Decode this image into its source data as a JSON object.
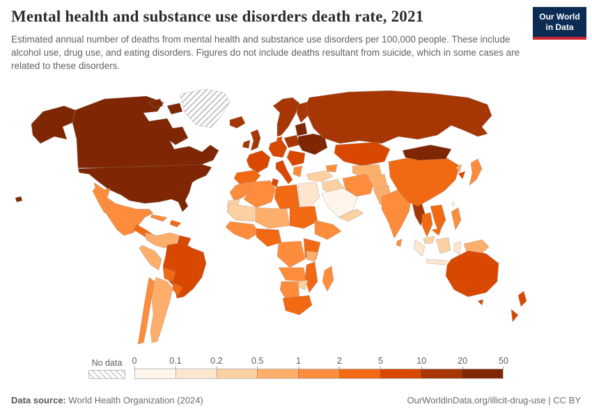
{
  "header": {
    "title": "Mental health and substance use disorders death rate, 2021",
    "subtitle": "Estimated annual number of deaths from mental health and substance use disorders per 100,000 people. These include alcohol use, drug use, and eating disorders. Figures do not include deaths resultant from suicide, which in some cases are related to these disorders.",
    "logo": {
      "line1": "Our World",
      "line2": "in Data",
      "bg_color": "#0d2c54",
      "accent_color": "#cd2531"
    }
  },
  "legend": {
    "no_data_label": "No data",
    "tick_labels": [
      "0",
      "0.1",
      "0.2",
      "0.5",
      "1",
      "2",
      "5",
      "10",
      "20",
      "50"
    ],
    "bin_colors": [
      "#fff5eb",
      "#fee6ce",
      "#fdd0a2",
      "#fdae6b",
      "#fd8d3c",
      "#f16913",
      "#d94801",
      "#a63603",
      "#7f2704"
    ]
  },
  "footer": {
    "datasource_label": "Data source:",
    "datasource_value": " World Health Organization (2024)",
    "link_text": "OurWorldinData.org/illicit-drug-use | CC BY"
  },
  "chart_data": {
    "type": "heatmap",
    "subtype": "choropleth-world-map",
    "title": "Mental health and substance use disorders death rate, 2021",
    "unit": "deaths per 100,000 people",
    "year": 2021,
    "legend_position": "bottom",
    "scale_bins": [
      {
        "range": "0–0.1",
        "color": "#fff5eb"
      },
      {
        "range": "0.1–0.2",
        "color": "#fee6ce"
      },
      {
        "range": "0.2–0.5",
        "color": "#fdd0a2"
      },
      {
        "range": "0.5–1",
        "color": "#fdae6b"
      },
      {
        "range": "1–2",
        "color": "#fd8d3c"
      },
      {
        "range": "2–5",
        "color": "#f16913"
      },
      {
        "range": "5–10",
        "color": "#d94801"
      },
      {
        "range": "10–20",
        "color": "#a63603"
      },
      {
        "range": "20–50",
        "color": "#7f2704"
      }
    ],
    "regions_by_bin": {
      "20-50": [
        "United States",
        "Canada",
        "Ukraine",
        "Belarus",
        "Baltic states",
        "Mongolia"
      ],
      "10-20": [
        "Russia",
        "Iceland",
        "Norway",
        "Sweden",
        "Finland",
        "United Kingdom",
        "Ireland",
        "Poland",
        "Myanmar"
      ],
      "5-10": [
        "France",
        "Germany",
        "Italy",
        "Romania",
        "Denmark",
        "Kazakhstan",
        "Brazil",
        "Guyana",
        "Uruguay",
        "Australia",
        "New Zealand",
        "South Korea",
        "Tunisia"
      ],
      "2-5": [
        "Spain",
        "Portugal",
        "China",
        "Libya",
        "Thailand",
        "Vietnam",
        "Cambodia",
        "Nigeria",
        "Sudan",
        "Mozambique",
        "South Africa",
        "Bolivia",
        "Central America"
      ],
      "1-2": [
        "Mexico",
        "Chile",
        "India",
        "Japan",
        "Philippines",
        "Sri Lanka",
        "Algeria",
        "Morocco",
        "Iran",
        "Madagascar",
        "West Africa",
        "DR Congo",
        "Angola",
        "Greece",
        "Cuba"
      ],
      "0.5-1": [
        "Colombia",
        "Venezuela",
        "Peru",
        "Argentina",
        "Pakistan",
        "Afghanistan",
        "Niger",
        "Chad",
        "Tanzania",
        "Papua New Guinea",
        "North Korea",
        "Uzbekistan"
      ],
      "0.2-0.5": [
        "Turkey",
        "Syria",
        "Iraq",
        "Yemen",
        "Oman",
        "Mauritania",
        "Mali",
        "Malaysia",
        "Borneo (Indonesia)",
        "Zimbabwe",
        "Western Sahara"
      ],
      "0.1-0.2": [
        "Egypt",
        "Indonesia"
      ],
      "0-0.1": [
        "Saudi Arabia",
        "Taiwan"
      ],
      "no_data": [
        "Greenland"
      ]
    }
  },
  "map": {
    "no_data_pattern": "hatch",
    "regions": [
      {
        "id": "greenland",
        "color": "hatch"
      },
      {
        "id": "alaska",
        "color": "#7f2704"
      },
      {
        "id": "canada",
        "color": "#7f2704"
      },
      {
        "id": "arctic-island-1",
        "color": "#7f2704"
      },
      {
        "id": "arctic-island-2",
        "color": "#7f2704"
      },
      {
        "id": "usa",
        "color": "#7f2704"
      },
      {
        "id": "hawaii",
        "color": "#7f2704"
      },
      {
        "id": "mexico",
        "color": "#fd8d3c"
      },
      {
        "id": "central-america",
        "color": "#f16913"
      },
      {
        "id": "cuba",
        "color": "#fd8d3c"
      },
      {
        "id": "hispaniola",
        "color": "#f16913"
      },
      {
        "id": "colombia-venezuela",
        "color": "#fdae6b"
      },
      {
        "id": "guyanas",
        "color": "#d94801"
      },
      {
        "id": "brazil",
        "color": "#d94801"
      },
      {
        "id": "peru",
        "color": "#fdae6b"
      },
      {
        "id": "bolivia",
        "color": "#f16913"
      },
      {
        "id": "paraguay-uruguay",
        "color": "#f16913"
      },
      {
        "id": "argentina",
        "color": "#fdae6b"
      },
      {
        "id": "chile",
        "color": "#fd8d3c"
      },
      {
        "id": "iceland",
        "color": "#a63603"
      },
      {
        "id": "uk",
        "color": "#a63603"
      },
      {
        "id": "ireland",
        "color": "#a63603"
      },
      {
        "id": "scandinavia",
        "color": "#a63603"
      },
      {
        "id": "finland",
        "color": "#a63603"
      },
      {
        "id": "denmark",
        "color": "#d94801"
      },
      {
        "id": "central-europe",
        "color": "#d94801"
      },
      {
        "id": "france",
        "color": "#d94801"
      },
      {
        "id": "iberia",
        "color": "#f16913"
      },
      {
        "id": "italy",
        "color": "#d94801"
      },
      {
        "id": "poland",
        "color": "#a63603"
      },
      {
        "id": "baltics",
        "color": "#7f2704"
      },
      {
        "id": "belarus-ukraine",
        "color": "#7f2704"
      },
      {
        "id": "balkans",
        "color": "#d94801"
      },
      {
        "id": "greece",
        "color": "#fd8d3c"
      },
      {
        "id": "russia",
        "color": "#a63603"
      },
      {
        "id": "kazakhstan",
        "color": "#d94801"
      },
      {
        "id": "central-asia",
        "color": "#fdae6b"
      },
      {
        "id": "turkey",
        "color": "#fdd0a2"
      },
      {
        "id": "caucasus",
        "color": "#fd8d3c"
      },
      {
        "id": "syria-iraq",
        "color": "#fdd0a2"
      },
      {
        "id": "saudi-arabia",
        "color": "#fff5eb"
      },
      {
        "id": "yemen-oman",
        "color": "#fdd0a2"
      },
      {
        "id": "iran",
        "color": "#fd8d3c"
      },
      {
        "id": "afghanistan",
        "color": "#fdae6b"
      },
      {
        "id": "pakistan",
        "color": "#fdae6b"
      },
      {
        "id": "india",
        "color": "#fd8d3c"
      },
      {
        "id": "myanmar",
        "color": "#a63603"
      },
      {
        "id": "thailand",
        "color": "#f16913"
      },
      {
        "id": "vietnam-laos",
        "color": "#f16913"
      },
      {
        "id": "cambodia",
        "color": "#f16913"
      },
      {
        "id": "malaysia",
        "color": "#fdd0a2"
      },
      {
        "id": "sumatra",
        "color": "#fee6ce"
      },
      {
        "id": "borneo",
        "color": "#fdd0a2"
      },
      {
        "id": "java",
        "color": "#fee6ce"
      },
      {
        "id": "sulawesi",
        "color": "#fee6ce"
      },
      {
        "id": "new-guinea",
        "color": "#fdae6b"
      },
      {
        "id": "philippines",
        "color": "#fd8d3c"
      },
      {
        "id": "china",
        "color": "#f16913"
      },
      {
        "id": "mongolia",
        "color": "#7f2704"
      },
      {
        "id": "north-korea",
        "color": "#fdae6b"
      },
      {
        "id": "south-korea",
        "color": "#d94801"
      },
      {
        "id": "japan",
        "color": "#fd8d3c"
      },
      {
        "id": "taiwan",
        "color": "#fff5eb"
      },
      {
        "id": "sri-lanka",
        "color": "#fd8d3c"
      },
      {
        "id": "australia",
        "color": "#d94801"
      },
      {
        "id": "tasmania",
        "color": "#d94801"
      },
      {
        "id": "new-zealand-north",
        "color": "#d94801"
      },
      {
        "id": "new-zealand-south",
        "color": "#d94801"
      },
      {
        "id": "madagascar",
        "color": "#fd8d3c"
      },
      {
        "id": "morocco",
        "color": "#fd8d3c"
      },
      {
        "id": "western-sahara",
        "color": "#fdd0a2"
      },
      {
        "id": "algeria",
        "color": "#fd8d3c"
      },
      {
        "id": "tunisia",
        "color": "#d94801"
      },
      {
        "id": "libya",
        "color": "#f16913"
      },
      {
        "id": "egypt",
        "color": "#fee6ce"
      },
      {
        "id": "mauritania-mali",
        "color": "#fdd0a2"
      },
      {
        "id": "sahel",
        "color": "#fdae6b"
      },
      {
        "id": "sudan",
        "color": "#f16913"
      },
      {
        "id": "horn-of-africa",
        "color": "#fd8d3c"
      },
      {
        "id": "west-africa",
        "color": "#fd8d3c"
      },
      {
        "id": "nigeria",
        "color": "#f16913"
      },
      {
        "id": "drc",
        "color": "#fd8d3c"
      },
      {
        "id": "east-africa",
        "color": "#f16913"
      },
      {
        "id": "tanzania",
        "color": "#fdae6b"
      },
      {
        "id": "angola-zambia",
        "color": "#fd8d3c"
      },
      {
        "id": "mozambique",
        "color": "#f16913"
      },
      {
        "id": "zimbabwe",
        "color": "#fdd0a2"
      },
      {
        "id": "namibia-botswana",
        "color": "#fd8d3c"
      },
      {
        "id": "south-africa",
        "color": "#f16913"
      }
    ]
  }
}
